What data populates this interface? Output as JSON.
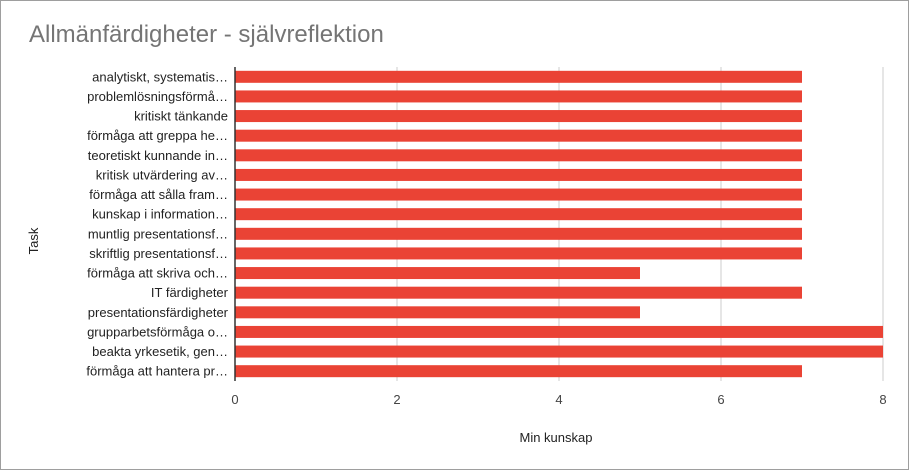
{
  "chart_data": {
    "type": "bar",
    "orientation": "horizontal",
    "title": "Allmänfärdigheter - självreflektion",
    "xlabel": "Min kunskap",
    "ylabel": "Task",
    "xlim": [
      0,
      8
    ],
    "xticks": [
      "0",
      "2",
      "4",
      "6",
      "8"
    ],
    "grid": true,
    "legend": "none",
    "bar_color": "#ea4335",
    "categories": [
      "analytiskt, systematis…",
      "problemlösningsförmå…",
      "kritiskt tänkande",
      "förmåga att greppa he…",
      "teoretiskt kunnande in…",
      "kritisk utvärdering av…",
      "förmåga att sålla fram…",
      "kunskap i information…",
      "muntlig presentationsf…",
      "skriftlig presentationsf…",
      "förmåga att skriva och…",
      "IT färdigheter",
      "presentationsfärdigheter",
      "grupparbetsförmåga o…",
      "beakta yrkesetik, gen…",
      "förmåga att hantera pr…"
    ],
    "values": [
      7,
      7,
      7,
      7,
      7,
      7,
      7,
      7,
      7,
      7,
      5,
      7,
      5,
      8,
      8,
      7
    ]
  }
}
